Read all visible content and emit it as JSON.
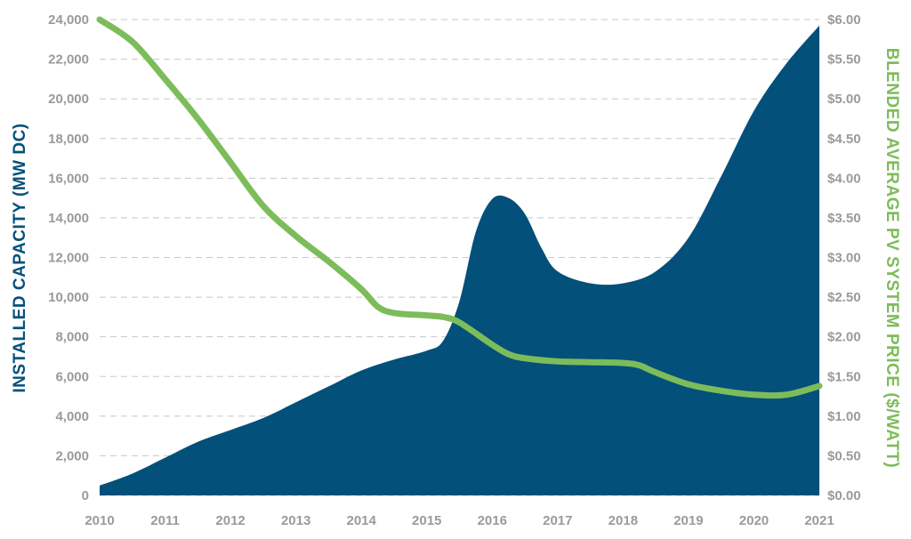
{
  "chart_data": {
    "type": "area",
    "x": [
      "2010",
      "2011",
      "2012",
      "2013",
      "2014",
      "2015",
      "2016",
      "2017",
      "2018",
      "2019",
      "2020",
      "2021"
    ],
    "y_left_ticks": [
      "0",
      "2,000",
      "4,000",
      "6,000",
      "8,000",
      "10,000",
      "12,000",
      "14,000",
      "16,000",
      "18,000",
      "20,000",
      "22,000",
      "24,000"
    ],
    "y_right_ticks": [
      "$0.00",
      "$0.50",
      "$1.00",
      "$1.50",
      "$2.00",
      "$2.50",
      "$3.00",
      "$3.50",
      "$4.00",
      "$4.50",
      "$5.00",
      "$5.50",
      "$6.00"
    ],
    "ylabel_left": "INSTALLED CAPACITY (MW DC)",
    "ylabel_right": "BLENDED AVERAGE PV SYSTEM PRICE ($/WATT)",
    "ylim_left": [
      0,
      24000
    ],
    "ylim_right": [
      0,
      6
    ],
    "grid": true,
    "series": [
      {
        "axis": "left",
        "type": "area",
        "color": "#03507a",
        "points": [
          [
            2010,
            500
          ],
          [
            2010.5,
            1100
          ],
          [
            2011,
            1900
          ],
          [
            2011.5,
            2700
          ],
          [
            2012,
            3300
          ],
          [
            2012.5,
            3900
          ],
          [
            2013,
            4700
          ],
          [
            2013.5,
            5500
          ],
          [
            2014,
            6300
          ],
          [
            2014.5,
            6850
          ],
          [
            2015,
            7300
          ],
          [
            2015.25,
            7800
          ],
          [
            2015.5,
            9800
          ],
          [
            2015.75,
            13300
          ],
          [
            2016,
            14950
          ],
          [
            2016.25,
            15000
          ],
          [
            2016.5,
            14200
          ],
          [
            2016.75,
            12500
          ],
          [
            2017,
            11300
          ],
          [
            2017.5,
            10700
          ],
          [
            2018,
            10700
          ],
          [
            2018.5,
            11300
          ],
          [
            2019,
            13000
          ],
          [
            2019.5,
            16100
          ],
          [
            2020,
            19400
          ],
          [
            2020.5,
            21800
          ],
          [
            2021,
            23700
          ]
        ]
      },
      {
        "axis": "right",
        "type": "line",
        "color": "#7cbc5a",
        "points": [
          [
            2010,
            6.0
          ],
          [
            2010.5,
            5.72
          ],
          [
            2011,
            5.25
          ],
          [
            2011.5,
            4.75
          ],
          [
            2012,
            4.2
          ],
          [
            2012.5,
            3.65
          ],
          [
            2013,
            3.27
          ],
          [
            2013.5,
            2.95
          ],
          [
            2014,
            2.6
          ],
          [
            2014.25,
            2.38
          ],
          [
            2014.5,
            2.3
          ],
          [
            2015,
            2.27
          ],
          [
            2015.25,
            2.25
          ],
          [
            2015.5,
            2.18
          ],
          [
            2016,
            1.9
          ],
          [
            2016.25,
            1.78
          ],
          [
            2016.5,
            1.73
          ],
          [
            2017,
            1.69
          ],
          [
            2017.5,
            1.68
          ],
          [
            2018,
            1.67
          ],
          [
            2018.25,
            1.64
          ],
          [
            2018.5,
            1.55
          ],
          [
            2019,
            1.4
          ],
          [
            2019.5,
            1.32
          ],
          [
            2020,
            1.27
          ],
          [
            2020.5,
            1.27
          ],
          [
            2021,
            1.38
          ]
        ]
      }
    ]
  },
  "colors": {
    "area": "#03507a",
    "line": "#7cbc5a",
    "left_title": "#03507a",
    "right_title": "#7cbc5a",
    "ticks": "#9a9a9a",
    "grid": "#c8c8c8"
  }
}
